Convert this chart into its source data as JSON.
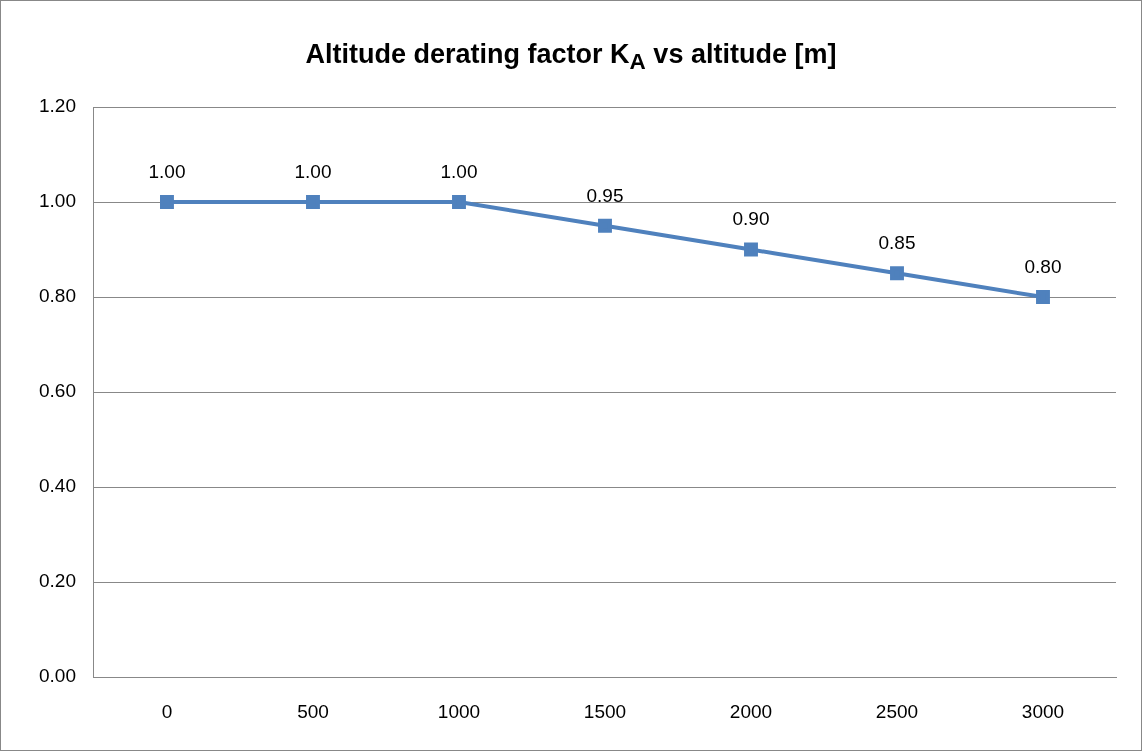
{
  "chart_data": {
    "type": "line",
    "title": "Altitude derating factor K$_{A}$ vs altitude [m]",
    "categories": [
      "0",
      "500",
      "1000",
      "1500",
      "2000",
      "2500",
      "3000"
    ],
    "series": [
      {
        "color": "#4f81bd",
        "values": [
          1.0,
          1.0,
          1.0,
          0.95,
          0.9,
          0.85,
          0.8
        ],
        "value_labels": [
          "1.00",
          "1.00",
          "1.00",
          "0.95",
          "0.90",
          "0.85",
          "0.80"
        ]
      }
    ],
    "ylim": [
      0,
      1.2
    ],
    "yticks": [
      {
        "value": 0,
        "label": "0.00"
      },
      {
        "value": 0.2,
        "label": "0.20"
      },
      {
        "value": 0.4,
        "label": "0.40"
      },
      {
        "value": 0.6,
        "label": "0.60"
      },
      {
        "value": 0.8,
        "label": "0.80"
      },
      {
        "value": 1.0,
        "label": "1.00"
      },
      {
        "value": 1.2,
        "label": "1.20"
      }
    ],
    "grid": "y",
    "legend": false,
    "marker": "square",
    "line_style": "solid"
  }
}
